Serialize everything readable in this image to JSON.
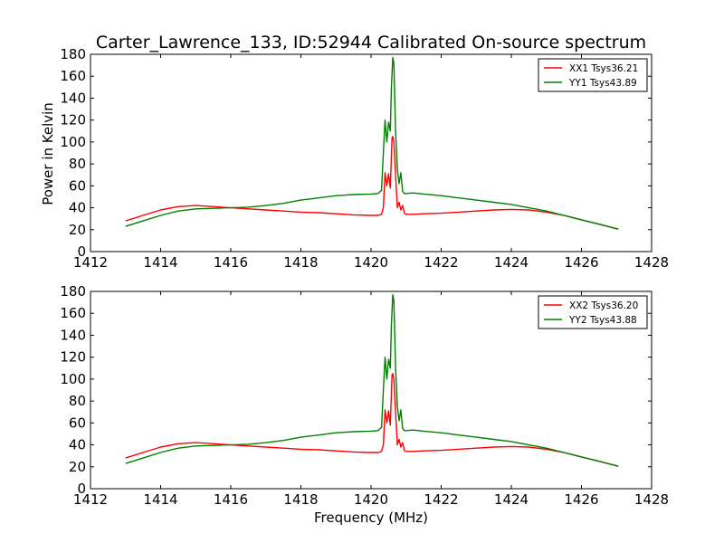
{
  "chart_data": [
    {
      "type": "line",
      "title": "Carter_Lawrence_133, ID:52944 Calibrated On-source spectrum",
      "xlabel": "",
      "ylabel": "Power in Kelvin",
      "xlim": [
        1412,
        1428
      ],
      "ylim": [
        0,
        180
      ],
      "xticks": [
        "1412",
        "1414",
        "1416",
        "1418",
        "1420",
        "1422",
        "1424",
        "1426",
        "1428"
      ],
      "yticks": [
        "0",
        "20",
        "40",
        "60",
        "80",
        "100",
        "120",
        "140",
        "160",
        "180"
      ],
      "legend_position": "top-right",
      "grid": false,
      "series": [
        {
          "name": "XX1 Tsys36.21",
          "color": "#ff0000",
          "x": [
            1413.0,
            1413.5,
            1414.0,
            1414.5,
            1415.0,
            1415.5,
            1416.0,
            1416.5,
            1417.0,
            1417.5,
            1418.0,
            1418.5,
            1419.0,
            1419.5,
            1420.0,
            1420.2,
            1420.3,
            1420.35,
            1420.4,
            1420.45,
            1420.5,
            1420.55,
            1420.6,
            1420.62,
            1420.65,
            1420.7,
            1420.75,
            1420.8,
            1420.85,
            1420.9,
            1420.95,
            1421.0,
            1421.2,
            1421.5,
            1422.0,
            1422.5,
            1423.0,
            1423.5,
            1424.0,
            1424.5,
            1425.0,
            1425.5,
            1426.0,
            1426.5,
            1427.05
          ],
          "y": [
            28,
            33,
            38,
            41,
            42,
            41,
            40,
            39,
            38,
            37,
            36,
            35.5,
            34.5,
            33.5,
            33,
            33,
            34,
            40,
            72,
            60,
            71,
            58,
            104,
            105,
            100,
            70,
            40,
            45,
            38,
            42,
            35,
            34,
            34,
            34.5,
            35,
            36,
            37,
            38,
            38.5,
            38,
            36,
            33,
            29,
            25,
            20.5
          ]
        },
        {
          "name": "YY1 Tsys43.89",
          "color": "#008000",
          "x": [
            1413.0,
            1413.5,
            1414.0,
            1414.5,
            1415.0,
            1415.5,
            1416.0,
            1416.5,
            1417.0,
            1417.5,
            1418.0,
            1418.5,
            1419.0,
            1419.5,
            1420.0,
            1420.2,
            1420.3,
            1420.35,
            1420.4,
            1420.45,
            1420.5,
            1420.55,
            1420.58,
            1420.62,
            1420.65,
            1420.7,
            1420.75,
            1420.8,
            1420.85,
            1420.9,
            1420.95,
            1421.0,
            1421.2,
            1421.5,
            1422.0,
            1422.5,
            1423.0,
            1423.5,
            1424.0,
            1424.5,
            1425.0,
            1425.5,
            1426.0,
            1426.5,
            1427.05
          ],
          "y": [
            23,
            28,
            33,
            37,
            39,
            39.5,
            40,
            40.5,
            42,
            44,
            47,
            49,
            51,
            52,
            52.5,
            53,
            56,
            90,
            120,
            100,
            118,
            110,
            150,
            177,
            172,
            110,
            75,
            62,
            72,
            55,
            53,
            53,
            53.5,
            52.5,
            51,
            49,
            47,
            45,
            43,
            40,
            37,
            33,
            29,
            25,
            20.5
          ]
        }
      ]
    },
    {
      "type": "line",
      "title": "",
      "xlabel": "Frequency (MHz)",
      "ylabel": "",
      "xlim": [
        1412,
        1428
      ],
      "ylim": [
        0,
        180
      ],
      "xticks": [
        "1412",
        "1414",
        "1416",
        "1418",
        "1420",
        "1422",
        "1424",
        "1426",
        "1428"
      ],
      "yticks": [
        "0",
        "20",
        "40",
        "60",
        "80",
        "100",
        "120",
        "140",
        "160",
        "180"
      ],
      "legend_position": "top-right",
      "grid": false,
      "series": [
        {
          "name": "XX2 Tsys36.20",
          "color": "#ff0000",
          "x": [
            1413.0,
            1413.5,
            1414.0,
            1414.5,
            1415.0,
            1415.5,
            1416.0,
            1416.5,
            1417.0,
            1417.5,
            1418.0,
            1418.5,
            1419.0,
            1419.5,
            1420.0,
            1420.2,
            1420.3,
            1420.35,
            1420.4,
            1420.45,
            1420.5,
            1420.55,
            1420.6,
            1420.62,
            1420.65,
            1420.7,
            1420.75,
            1420.8,
            1420.85,
            1420.9,
            1420.95,
            1421.0,
            1421.2,
            1421.5,
            1422.0,
            1422.5,
            1423.0,
            1423.5,
            1424.0,
            1424.5,
            1425.0,
            1425.5,
            1426.0,
            1426.5,
            1427.05
          ],
          "y": [
            28,
            33,
            38,
            41,
            42,
            41,
            40,
            39,
            38,
            37,
            36,
            35.5,
            34.5,
            33.5,
            33,
            33,
            34,
            40,
            72,
            60,
            71,
            58,
            104,
            105,
            100,
            70,
            40,
            45,
            38,
            42,
            35,
            34,
            34,
            34.5,
            35,
            36,
            37,
            38,
            38.5,
            38,
            36,
            33,
            29,
            25,
            20.5
          ]
        },
        {
          "name": "YY2 Tsys43.88",
          "color": "#008000",
          "x": [
            1413.0,
            1413.5,
            1414.0,
            1414.5,
            1415.0,
            1415.5,
            1416.0,
            1416.5,
            1417.0,
            1417.5,
            1418.0,
            1418.5,
            1419.0,
            1419.5,
            1420.0,
            1420.2,
            1420.3,
            1420.35,
            1420.4,
            1420.45,
            1420.5,
            1420.55,
            1420.58,
            1420.62,
            1420.65,
            1420.7,
            1420.75,
            1420.8,
            1420.85,
            1420.9,
            1420.95,
            1421.0,
            1421.2,
            1421.5,
            1422.0,
            1422.5,
            1423.0,
            1423.5,
            1424.0,
            1424.5,
            1425.0,
            1425.5,
            1426.0,
            1426.5,
            1427.05
          ],
          "y": [
            23,
            28,
            33,
            37,
            39,
            39.5,
            40,
            40.5,
            42,
            44,
            47,
            49,
            51,
            52,
            52.5,
            53,
            56,
            90,
            120,
            100,
            118,
            110,
            150,
            177,
            172,
            110,
            75,
            62,
            72,
            55,
            53,
            53,
            53.5,
            52.5,
            51,
            49,
            47,
            45,
            43,
            40,
            37,
            33,
            29,
            25,
            20.5
          ]
        }
      ]
    }
  ]
}
